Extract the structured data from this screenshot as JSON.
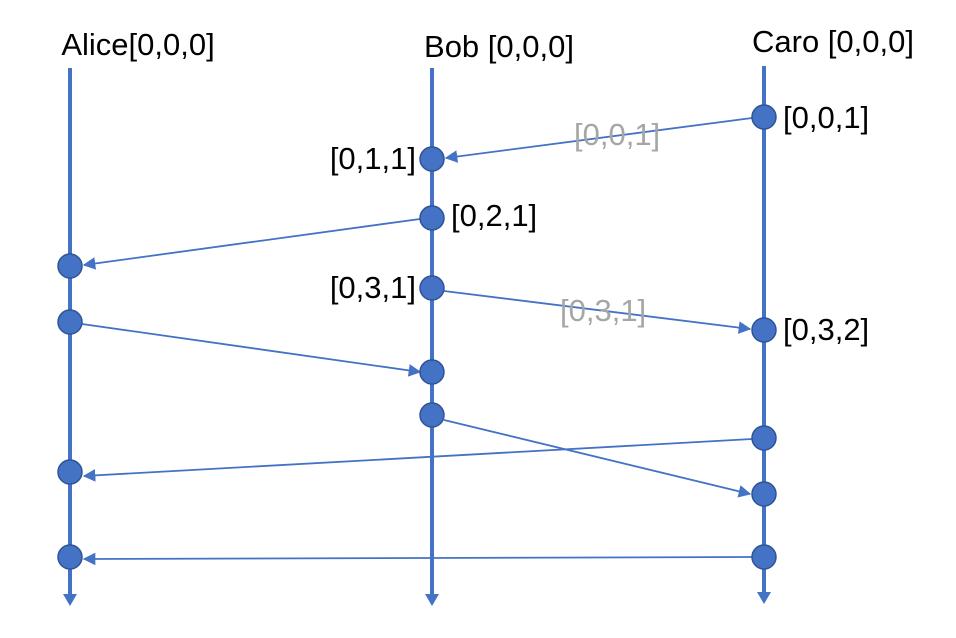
{
  "colors": {
    "line": "#4472c4",
    "node_fill": "#4472c4",
    "node_stroke": "#2f5597",
    "label_text": "#000000",
    "message_label_text": "#a6a6a6",
    "background": "#ffffff"
  },
  "processes": [
    {
      "id": "alice",
      "label": "Alice[0,0,0]"
    },
    {
      "id": "bob",
      "label": "Bob [0,0,0]"
    },
    {
      "id": "caro",
      "label": "Caro [0,0,0]"
    }
  ],
  "event_labels": {
    "caro_e1": "[0,0,1]",
    "bob_e1": "[0,1,1]",
    "bob_e2": "[0,2,1]",
    "bob_e3": "[0,3,1]",
    "caro_e2": "[0,3,2]"
  },
  "message_labels": {
    "m1": "[0,0,1]",
    "m2": "[0,3,1]"
  },
  "messages": [
    {
      "id": "m1",
      "from": "caro_e1",
      "to": "bob_e1"
    },
    {
      "id": "m_b2_a1",
      "from": "bob_e2",
      "to": "alice_e1"
    },
    {
      "id": "m2",
      "from": "bob_e3",
      "to": "caro_e2"
    },
    {
      "id": "m_a2_b4",
      "from": "alice_e2",
      "to": "bob_e4"
    },
    {
      "id": "m_b5_c4",
      "from": "bob_e5",
      "to": "caro_e4"
    },
    {
      "id": "m_c3_a3",
      "from": "caro_e3",
      "to": "alice_e3"
    },
    {
      "id": "m_c5_a4",
      "from": "caro_e5",
      "to": "alice_e4"
    }
  ]
}
